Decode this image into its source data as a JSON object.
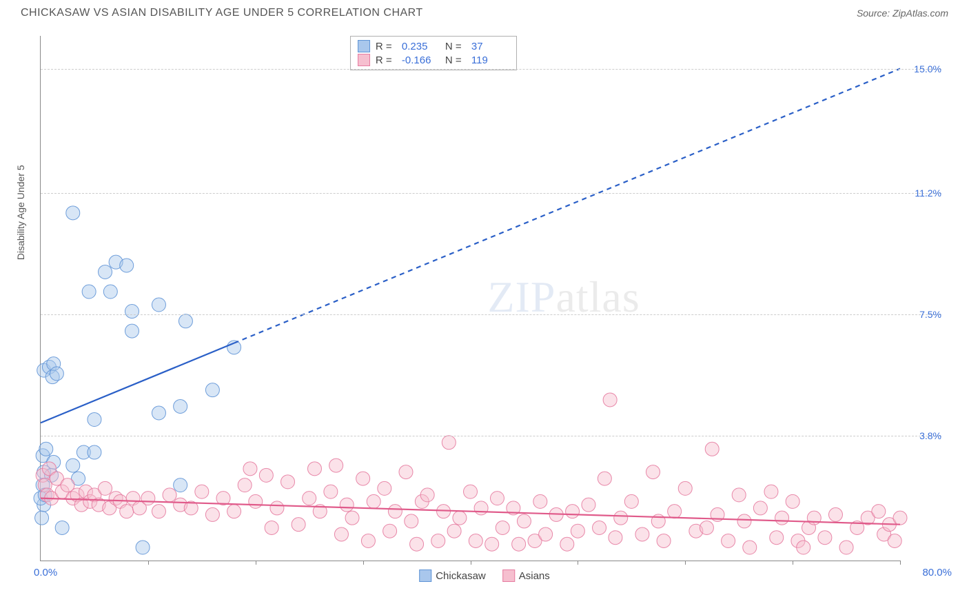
{
  "title": "CHICKASAW VS ASIAN DISABILITY AGE UNDER 5 CORRELATION CHART",
  "source_label": "Source: ZipAtlas.com",
  "watermark_a": "ZIP",
  "watermark_b": "atlas",
  "ylabel": "Disability Age Under 5",
  "chart": {
    "type": "scatter",
    "xlim": [
      0,
      80
    ],
    "ylim": [
      0,
      16
    ],
    "x_tick_step": 10,
    "x_min_label": "0.0%",
    "x_max_label": "80.0%",
    "y_ticks": [
      {
        "v": 3.8,
        "label": "3.8%"
      },
      {
        "v": 7.5,
        "label": "7.5%"
      },
      {
        "v": 11.2,
        "label": "11.2%"
      },
      {
        "v": 15.0,
        "label": "15.0%"
      }
    ],
    "background_color": "#ffffff",
    "grid_color": "#cccccc",
    "axis_color": "#888888",
    "label_color": "#3a6fd8",
    "marker_radius": 10,
    "marker_opacity": 0.45,
    "marker_stroke_opacity": 0.9,
    "series": [
      {
        "name": "Chickasaw",
        "color_fill": "#a9c7ec",
        "color_stroke": "#5f94d6",
        "r_value": "0.235",
        "n_value": "37",
        "trend": {
          "x1": 0,
          "y1": 4.2,
          "x2": 80,
          "y2": 15.0,
          "solid_until_x": 18,
          "color": "#2a5fc7",
          "width": 2.2,
          "dash": "7,6"
        },
        "points": [
          [
            0.3,
            2.7
          ],
          [
            0.2,
            3.2
          ],
          [
            0.5,
            3.4
          ],
          [
            0.3,
            5.8
          ],
          [
            0.8,
            5.9
          ],
          [
            1.2,
            6.0
          ],
          [
            0.3,
            1.7
          ],
          [
            1.0,
            2.6
          ],
          [
            1.2,
            3.0
          ],
          [
            0.2,
            2.3
          ],
          [
            1.1,
            5.6
          ],
          [
            1.5,
            5.7
          ],
          [
            3.0,
            10.6
          ],
          [
            3.5,
            2.5
          ],
          [
            4.0,
            3.3
          ],
          [
            4.5,
            8.2
          ],
          [
            5.0,
            4.3
          ],
          [
            5.0,
            3.3
          ],
          [
            6.0,
            8.8
          ],
          [
            6.5,
            8.2
          ],
          [
            7.0,
            9.1
          ],
          [
            8.0,
            9.0
          ],
          [
            8.5,
            7.0
          ],
          [
            8.5,
            7.6
          ],
          [
            9.5,
            0.4
          ],
          [
            11.0,
            4.5
          ],
          [
            11.0,
            7.8
          ],
          [
            13.0,
            4.7
          ],
          [
            13.0,
            2.3
          ],
          [
            13.5,
            7.3
          ],
          [
            16.0,
            5.2
          ],
          [
            18.0,
            6.5
          ],
          [
            0.1,
            1.3
          ],
          [
            0.0,
            1.9
          ],
          [
            0.4,
            2.0
          ],
          [
            2.0,
            1.0
          ],
          [
            3.0,
            2.9
          ]
        ]
      },
      {
        "name": "Asians",
        "color_fill": "#f6bfcf",
        "color_stroke": "#e67ba0",
        "r_value": "-0.166",
        "n_value": "119",
        "trend": {
          "x1": 0,
          "y1": 1.9,
          "x2": 80,
          "y2": 1.1,
          "solid_until_x": 80,
          "color": "#e05a8a",
          "width": 2.2,
          "dash": "0"
        },
        "points": [
          [
            0.2,
            2.6
          ],
          [
            0.4,
            2.3
          ],
          [
            0.6,
            2.0
          ],
          [
            0.8,
            2.8
          ],
          [
            1.0,
            1.9
          ],
          [
            1.5,
            2.5
          ],
          [
            2.0,
            2.1
          ],
          [
            2.5,
            2.3
          ],
          [
            3.0,
            1.9
          ],
          [
            3.4,
            2.0
          ],
          [
            3.8,
            1.7
          ],
          [
            4.2,
            2.1
          ],
          [
            4.6,
            1.8
          ],
          [
            5.0,
            2.0
          ],
          [
            5.4,
            1.7
          ],
          [
            6.0,
            2.2
          ],
          [
            6.4,
            1.6
          ],
          [
            7.0,
            1.9
          ],
          [
            7.4,
            1.8
          ],
          [
            8.0,
            1.5
          ],
          [
            8.6,
            1.9
          ],
          [
            9.2,
            1.6
          ],
          [
            10.0,
            1.9
          ],
          [
            11.0,
            1.5
          ],
          [
            12.0,
            2.0
          ],
          [
            13.0,
            1.7
          ],
          [
            14.0,
            1.6
          ],
          [
            15.0,
            2.1
          ],
          [
            16.0,
            1.4
          ],
          [
            17.0,
            1.9
          ],
          [
            18.0,
            1.5
          ],
          [
            19.0,
            2.3
          ],
          [
            19.5,
            2.8
          ],
          [
            20.0,
            1.8
          ],
          [
            21.0,
            2.6
          ],
          [
            21.5,
            1.0
          ],
          [
            22.0,
            1.6
          ],
          [
            23.0,
            2.4
          ],
          [
            24.0,
            1.1
          ],
          [
            25.0,
            1.9
          ],
          [
            25.5,
            2.8
          ],
          [
            26.0,
            1.5
          ],
          [
            27.0,
            2.1
          ],
          [
            27.5,
            2.9
          ],
          [
            28.0,
            0.8
          ],
          [
            28.5,
            1.7
          ],
          [
            29.0,
            1.3
          ],
          [
            30.0,
            2.5
          ],
          [
            30.5,
            0.6
          ],
          [
            31.0,
            1.8
          ],
          [
            32.0,
            2.2
          ],
          [
            32.5,
            0.9
          ],
          [
            33.0,
            1.5
          ],
          [
            34.0,
            2.7
          ],
          [
            34.5,
            1.2
          ],
          [
            35.0,
            0.5
          ],
          [
            35.5,
            1.8
          ],
          [
            36.0,
            2.0
          ],
          [
            37.0,
            0.6
          ],
          [
            37.5,
            1.5
          ],
          [
            38.0,
            3.6
          ],
          [
            38.5,
            0.9
          ],
          [
            39.0,
            1.3
          ],
          [
            40.0,
            2.1
          ],
          [
            40.5,
            0.6
          ],
          [
            41.0,
            1.6
          ],
          [
            42.0,
            0.5
          ],
          [
            42.5,
            1.9
          ],
          [
            43.0,
            1.0
          ],
          [
            44.0,
            1.6
          ],
          [
            44.5,
            0.5
          ],
          [
            45.0,
            1.2
          ],
          [
            46.0,
            0.6
          ],
          [
            46.5,
            1.8
          ],
          [
            47.0,
            0.8
          ],
          [
            48.0,
            1.4
          ],
          [
            49.0,
            0.5
          ],
          [
            49.5,
            1.5
          ],
          [
            50.0,
            0.9
          ],
          [
            51.0,
            1.7
          ],
          [
            52.0,
            1.0
          ],
          [
            52.5,
            2.5
          ],
          [
            53.0,
            4.9
          ],
          [
            53.5,
            0.7
          ],
          [
            54.0,
            1.3
          ],
          [
            55.0,
            1.8
          ],
          [
            56.0,
            0.8
          ],
          [
            57.0,
            2.7
          ],
          [
            57.5,
            1.2
          ],
          [
            58.0,
            0.6
          ],
          [
            59.0,
            1.5
          ],
          [
            60.0,
            2.2
          ],
          [
            61.0,
            0.9
          ],
          [
            62.0,
            1.0
          ],
          [
            62.5,
            3.4
          ],
          [
            63.0,
            1.4
          ],
          [
            64.0,
            0.6
          ],
          [
            65.0,
            2.0
          ],
          [
            65.5,
            1.2
          ],
          [
            66.0,
            0.4
          ],
          [
            67.0,
            1.6
          ],
          [
            68.0,
            2.1
          ],
          [
            68.5,
            0.7
          ],
          [
            69.0,
            1.3
          ],
          [
            70.0,
            1.8
          ],
          [
            70.5,
            0.6
          ],
          [
            71.0,
            0.4
          ],
          [
            71.5,
            1.0
          ],
          [
            72.0,
            1.3
          ],
          [
            73.0,
            0.7
          ],
          [
            74.0,
            1.4
          ],
          [
            75.0,
            0.4
          ],
          [
            76.0,
            1.0
          ],
          [
            77.0,
            1.3
          ],
          [
            78.0,
            1.5
          ],
          [
            78.5,
            0.8
          ],
          [
            79.0,
            1.1
          ],
          [
            79.5,
            0.6
          ],
          [
            80.0,
            1.3
          ]
        ]
      }
    ]
  },
  "legend": {
    "items": [
      {
        "label": "Chickasaw",
        "fill": "#a9c7ec",
        "stroke": "#5f94d6"
      },
      {
        "label": "Asians",
        "fill": "#f6bfcf",
        "stroke": "#e67ba0"
      }
    ]
  }
}
